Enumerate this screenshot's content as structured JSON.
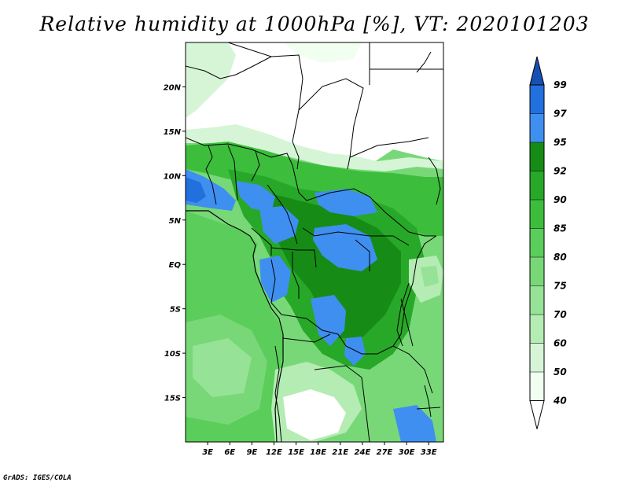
{
  "title": "Relative humidity at 1000hPa [%], VT: 2020101203",
  "credit": "GrADS: IGES/COLA",
  "colors": {
    "c40": "#f0fff0",
    "c50": "#d6f5d6",
    "c60": "#b4ecb4",
    "c70": "#96e296",
    "c75": "#78d878",
    "c80": "#5acd5a",
    "c85": "#3cbe3c",
    "c90": "#28a828",
    "c92": "#168c16",
    "c95": "#3f8ff0",
    "c97": "#2270dd",
    "c99": "#1650b4",
    "land_dry": "#ffffff",
    "border": "#000000"
  },
  "map": {
    "lon_range": [
      0,
      35
    ],
    "lat_range": [
      -20,
      25
    ],
    "lat_ticks": [
      {
        "lat": 20,
        "label": "20N"
      },
      {
        "lat": 15,
        "label": "15N"
      },
      {
        "lat": 10,
        "label": "10N"
      },
      {
        "lat": 5,
        "label": "5N"
      },
      {
        "lat": 0,
        "label": "EQ"
      },
      {
        "lat": -5,
        "label": "5S"
      },
      {
        "lat": -10,
        "label": "10S"
      },
      {
        "lat": -15,
        "label": "15S"
      }
    ],
    "lon_ticks": [
      {
        "lon": 3,
        "label": "3E"
      },
      {
        "lon": 6,
        "label": "6E"
      },
      {
        "lon": 9,
        "label": "9E"
      },
      {
        "lon": 12,
        "label": "12E"
      },
      {
        "lon": 15,
        "label": "15E"
      },
      {
        "lon": 18,
        "label": "18E"
      },
      {
        "lon": 21,
        "label": "21E"
      },
      {
        "lon": 24,
        "label": "24E"
      },
      {
        "lon": 27,
        "label": "27E"
      },
      {
        "lon": 30,
        "label": "30E"
      },
      {
        "lon": 33,
        "label": "33E"
      }
    ]
  },
  "legend": {
    "labels": [
      "99",
      "97",
      "95",
      "92",
      "90",
      "85",
      "80",
      "75",
      "70",
      "60",
      "50",
      "40"
    ],
    "bins": [
      {
        "color_key": "c99",
        "low": 99,
        "high": 100
      },
      {
        "color_key": "c97",
        "low": 97,
        "high": 99
      },
      {
        "color_key": "c95",
        "low": 95,
        "high": 97
      },
      {
        "color_key": "c92",
        "low": 92,
        "high": 95
      },
      {
        "color_key": "c90",
        "low": 90,
        "high": 92
      },
      {
        "color_key": "c85",
        "low": 85,
        "high": 90
      },
      {
        "color_key": "c80",
        "low": 80,
        "high": 85
      },
      {
        "color_key": "c75",
        "low": 75,
        "high": 80
      },
      {
        "color_key": "c70",
        "low": 70,
        "high": 75
      },
      {
        "color_key": "c60",
        "low": 60,
        "high": 70
      },
      {
        "color_key": "c50",
        "low": 50,
        "high": 60
      },
      {
        "color_key": "c40",
        "low": 40,
        "high": 50
      }
    ]
  }
}
